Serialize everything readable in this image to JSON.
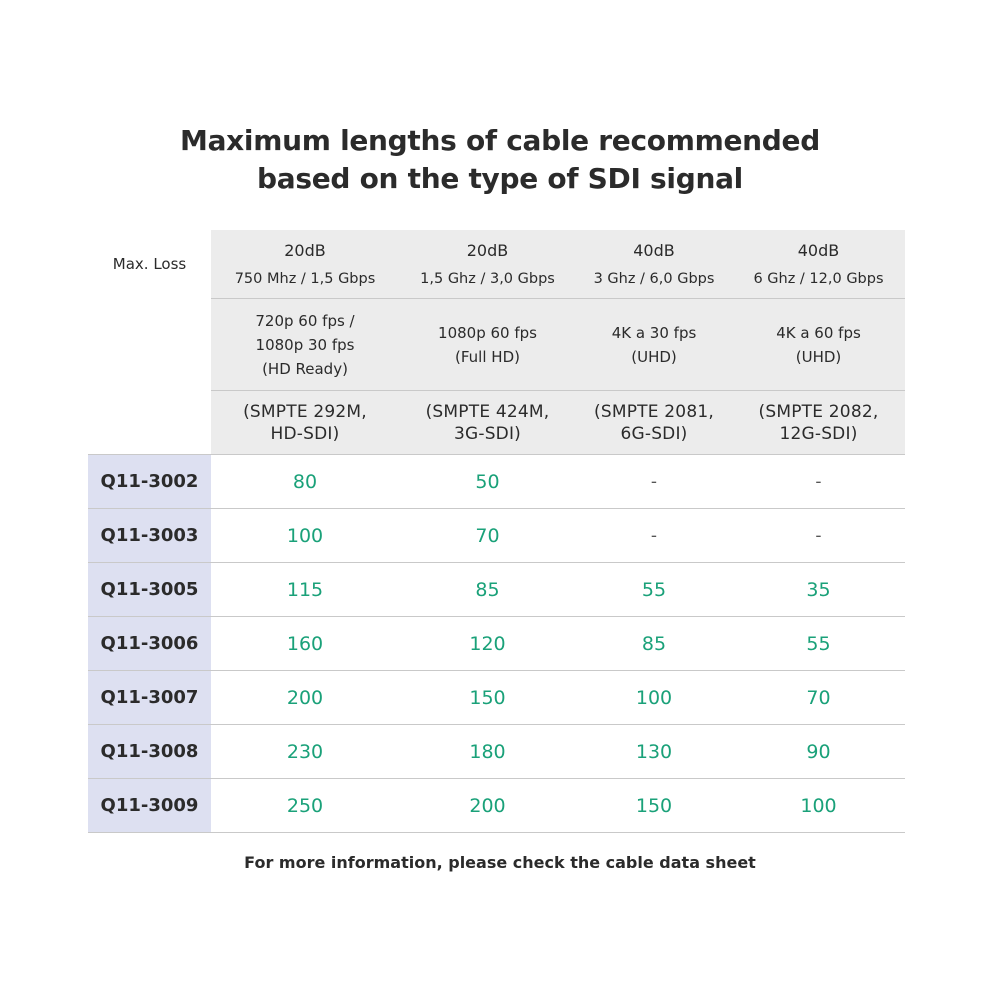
{
  "title": {
    "line1": "Maximum lengths of cable recommended",
    "line2": "based on the type of SDI signal"
  },
  "corner_label": "Max. Loss",
  "columns": [
    {
      "loss": "20dB",
      "bandwidth": "750 Mhz / 1,5 Gbps",
      "format": "720p 60 fps /\n1080p 30 fps\n(HD Ready)",
      "standard": "(SMPTE 292M,\nHD-SDI)"
    },
    {
      "loss": "20dB",
      "bandwidth": "1,5 Ghz / 3,0 Gbps",
      "format": "1080p 60 fps\n(Full HD)",
      "standard": "(SMPTE 424M,\n3G-SDI)"
    },
    {
      "loss": "40dB",
      "bandwidth": "3 Ghz / 6,0 Gbps",
      "format": "4K a 30 fps\n(UHD)",
      "standard": "(SMPTE 2081,\n6G-SDI)"
    },
    {
      "loss": "40dB",
      "bandwidth": "6 Ghz / 12,0 Gbps",
      "format": "4K a 60 fps\n(UHD)",
      "standard": "(SMPTE 2082,\n12G-SDI)"
    }
  ],
  "rows": [
    {
      "model": "Q11-3002",
      "values": [
        "80",
        "50",
        "-",
        "-"
      ]
    },
    {
      "model": "Q11-3003",
      "values": [
        "100",
        "70",
        "-",
        "-"
      ]
    },
    {
      "model": "Q11-3005",
      "values": [
        "115",
        "85",
        "55",
        "35"
      ]
    },
    {
      "model": "Q11-3006",
      "values": [
        "160",
        "120",
        "85",
        "55"
      ]
    },
    {
      "model": "Q11-3007",
      "values": [
        "200",
        "150",
        "100",
        "70"
      ]
    },
    {
      "model": "Q11-3008",
      "values": [
        "230",
        "180",
        "130",
        "90"
      ]
    },
    {
      "model": "Q11-3009",
      "values": [
        "250",
        "200",
        "150",
        "100"
      ]
    }
  ],
  "footer": "For more information, please check the cable data sheet",
  "colors": {
    "value_green": "#1aa179",
    "header_gray": "#ececec",
    "model_blue": "#dde0f1",
    "text_dark": "#2b2b2b"
  }
}
